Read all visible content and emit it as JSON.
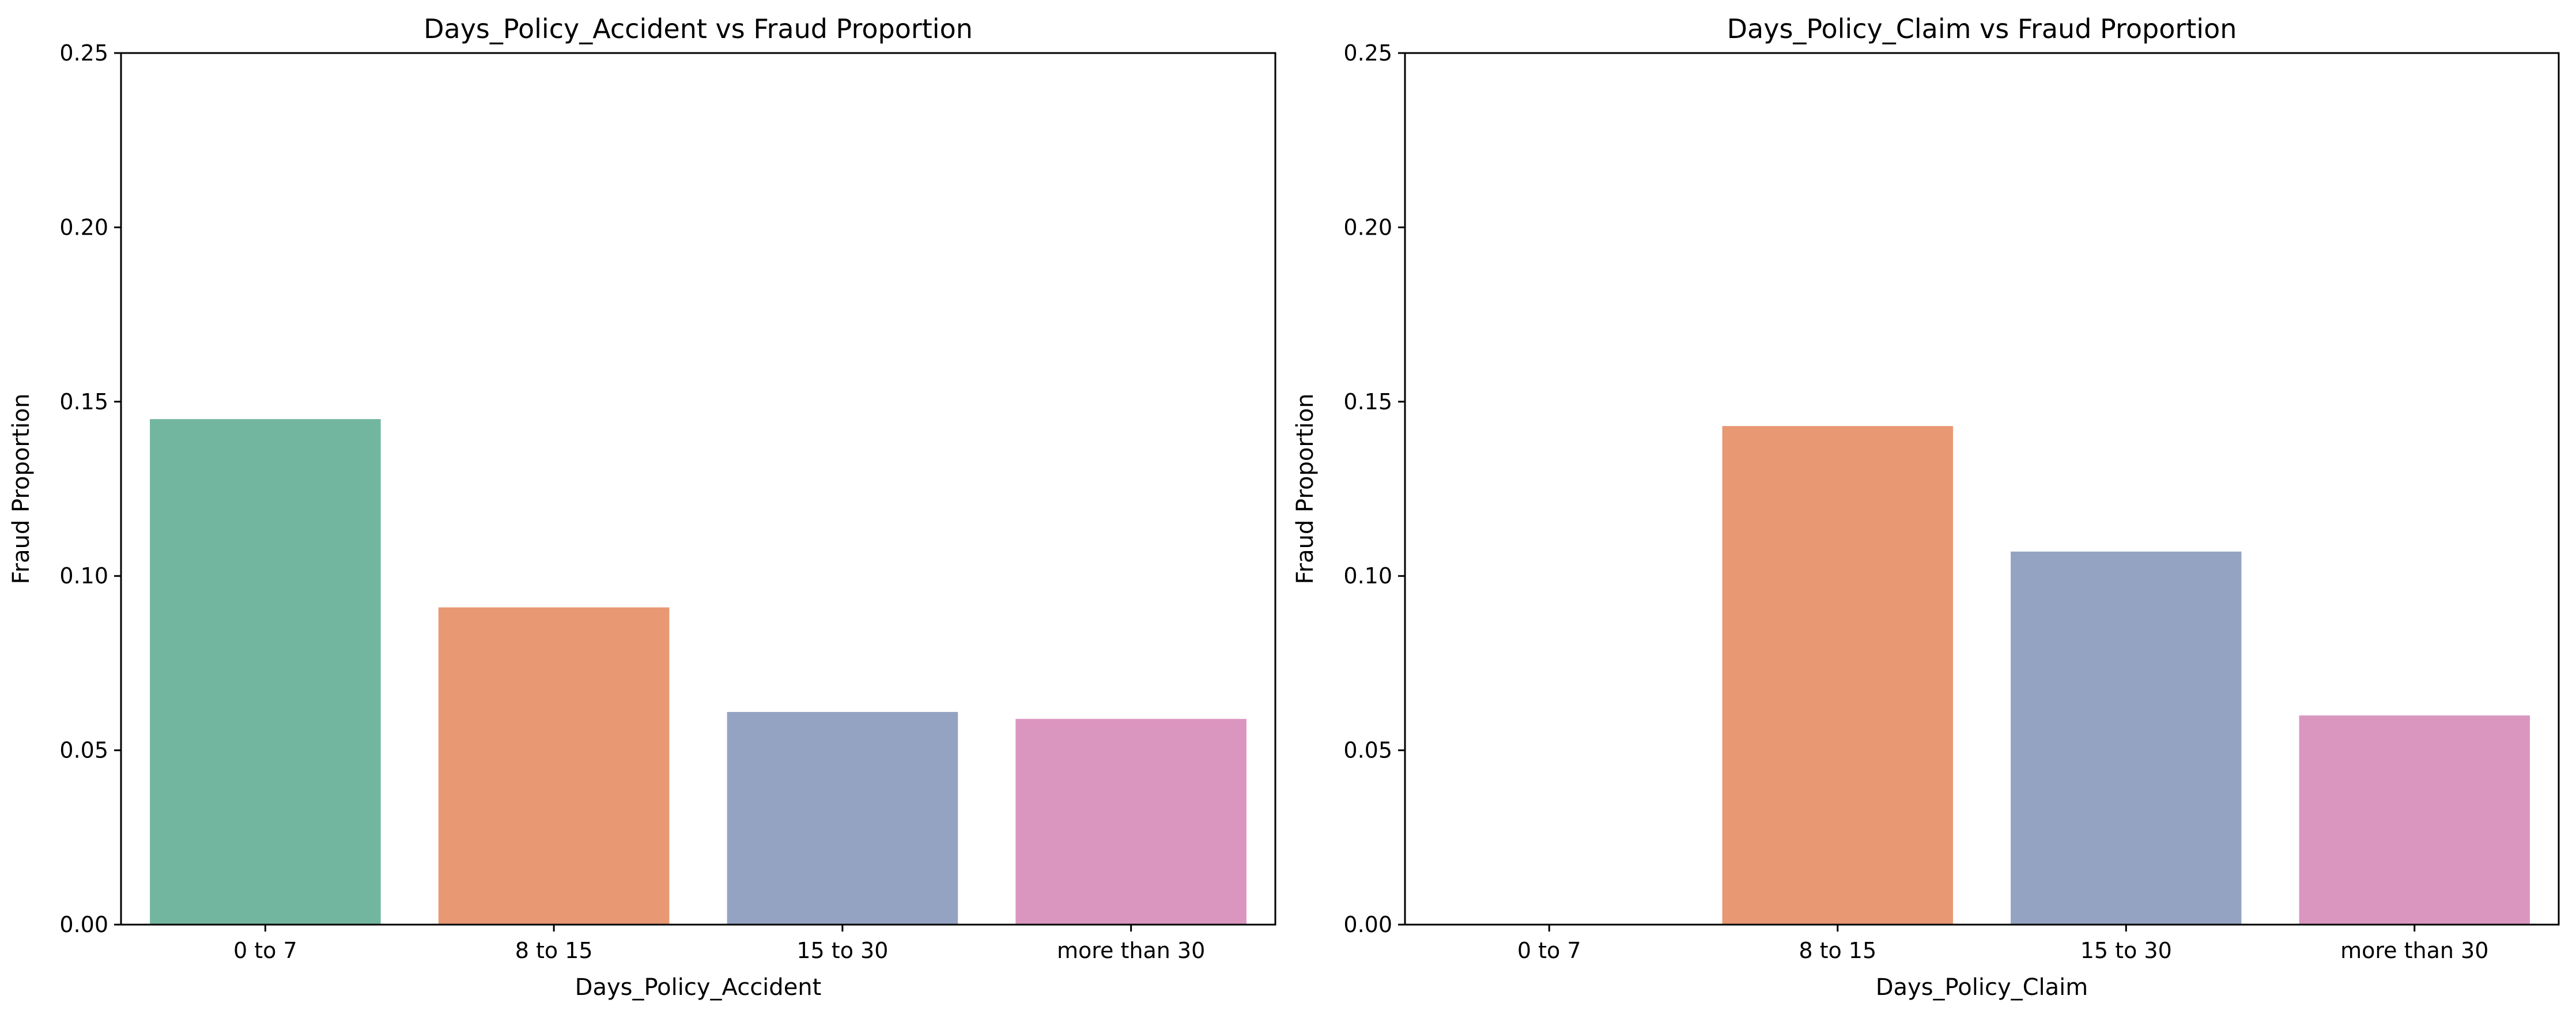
{
  "chart_data": [
    {
      "type": "bar",
      "title": "Days_Policy_Accident vs Fraud Proportion",
      "xlabel": "Days_Policy_Accident",
      "ylabel": "Fraud Proportion",
      "categories": [
        "0 to 7",
        "8 to 15",
        "15 to 30",
        "more than 30"
      ],
      "values": [
        0.145,
        0.091,
        0.061,
        0.059
      ],
      "colors": [
        "#73b6a0",
        "#e89873",
        "#95a3c3",
        "#db96c0"
      ],
      "ylim": [
        0,
        0.25
      ],
      "yticks": [
        "0.00",
        "0.05",
        "0.10",
        "0.15",
        "0.20",
        "0.25"
      ],
      "grid": false,
      "legend": "none"
    },
    {
      "type": "bar",
      "title": "Days_Policy_Claim vs Fraud Proportion",
      "xlabel": "Days_Policy_Claim",
      "ylabel": "Fraud Proportion",
      "categories": [
        "0 to 7",
        "8 to 15",
        "15 to 30",
        "more than 30"
      ],
      "values": [
        0.0,
        0.143,
        0.107,
        0.06
      ],
      "colors": [
        "#73b6a0",
        "#e89873",
        "#95a3c3",
        "#db96c0"
      ],
      "ylim": [
        0,
        0.25
      ],
      "yticks": [
        "0.00",
        "0.05",
        "0.10",
        "0.15",
        "0.20",
        "0.25"
      ],
      "grid": false,
      "legend": "none"
    }
  ]
}
